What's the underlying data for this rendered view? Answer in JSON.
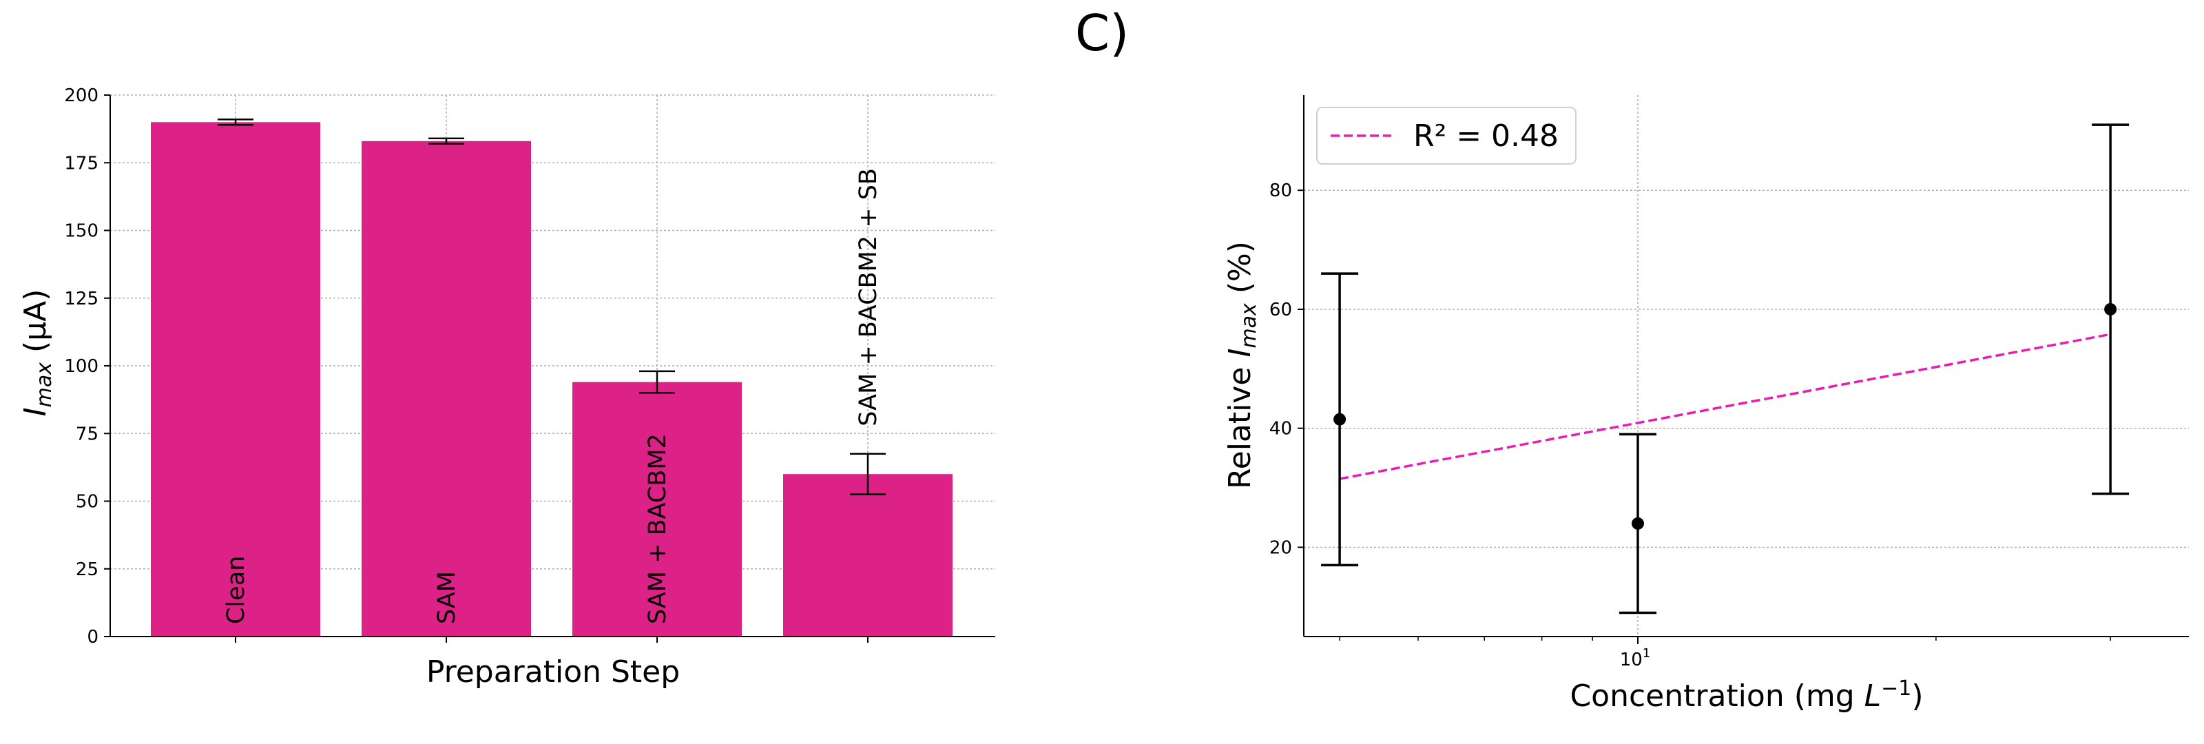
{
  "panel_label": "C)",
  "chart_data": [
    {
      "type": "bar",
      "xlabel": "Preparation Step",
      "ylabel": "I_max (μA)",
      "ylabel_parts": {
        "main": "I",
        "sub": "max",
        "unit": "(μA)"
      },
      "ylim": [
        0,
        200
      ],
      "yticks": [
        0,
        25,
        50,
        75,
        100,
        125,
        150,
        175,
        200
      ],
      "grid": true,
      "bar_color": "#dd2287",
      "categories": [
        "Clean",
        "SAM",
        "SAM + BACBM2",
        "SAM + BACBM2 + SB"
      ],
      "values": [
        190,
        183,
        94,
        60
      ],
      "errors": [
        1,
        1,
        4,
        7.5
      ]
    },
    {
      "type": "scatter",
      "xlabel": "Concentration (mg L^-1)",
      "xlabel_parts": {
        "main": "Concentration (mg ",
        "var": "L",
        "sup": "−1",
        "end": ")"
      },
      "ylabel": "Relative I_max (%)",
      "ylabel_parts": {
        "pre": "Relative ",
        "main": "I",
        "sub": "max",
        "unit": " (%)"
      },
      "xscale": "log",
      "xlim": [
        4.6,
        36
      ],
      "ylim": [
        5,
        96
      ],
      "yticks": [
        20,
        40,
        60,
        80
      ],
      "xtick_label": {
        "base": "10",
        "exp": "1"
      },
      "grid": true,
      "points": {
        "x": [
          5,
          10,
          30
        ],
        "y": [
          41.5,
          24,
          60
        ],
        "errors": [
          24.5,
          15,
          31
        ]
      },
      "fit": {
        "label": "R² = 0.48",
        "color": "#e61eb4",
        "x": [
          5,
          30
        ],
        "y": [
          31.5,
          55.8
        ]
      },
      "legend_position": "top-left"
    }
  ]
}
